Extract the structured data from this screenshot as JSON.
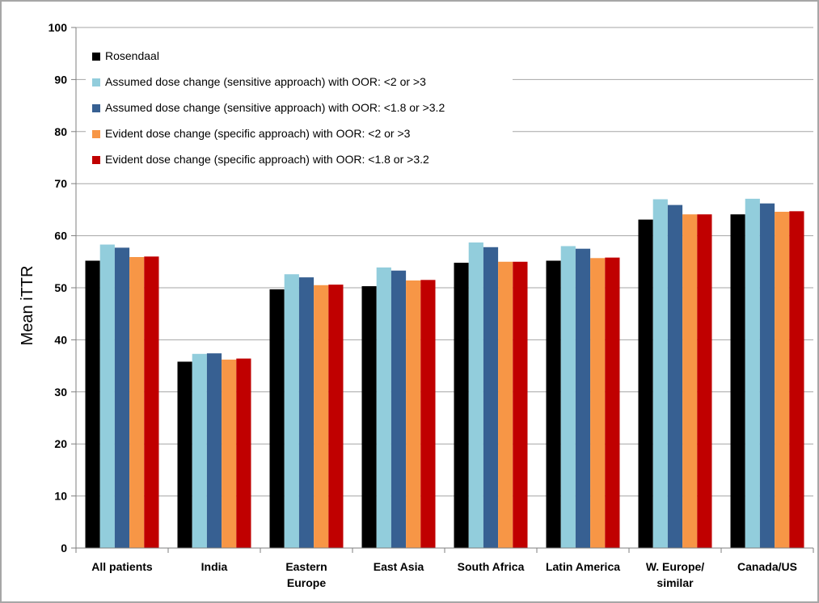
{
  "chart_data": {
    "type": "bar",
    "title": "",
    "xlabel": "",
    "ylabel": "Mean iTTR",
    "ylim": [
      0,
      100
    ],
    "yticks": [
      0,
      10,
      20,
      30,
      40,
      50,
      60,
      70,
      80,
      90,
      100
    ],
    "grid": true,
    "legend_position": "top-left",
    "categories": [
      [
        "All patients"
      ],
      [
        "India"
      ],
      [
        "Eastern",
        "Europe"
      ],
      [
        "East Asia"
      ],
      [
        "South Africa"
      ],
      [
        "Latin America"
      ],
      [
        "W. Europe/",
        "similar"
      ],
      [
        "Canada/US"
      ]
    ],
    "series": [
      {
        "name": "Rosendaal",
        "color": "#000000",
        "values": [
          55.2,
          35.8,
          49.7,
          50.3,
          54.8,
          55.2,
          63.1,
          64.1
        ]
      },
      {
        "name": "Assumed dose change (sensitive approach) with OOR: <2 or >3",
        "color": "#92cddc",
        "values": [
          58.3,
          37.3,
          52.6,
          53.9,
          58.7,
          58.0,
          67.0,
          67.1
        ]
      },
      {
        "name": "Assumed dose change (sensitive approach) with OOR: <1.8 or >3.2",
        "color": "#376092",
        "values": [
          57.7,
          37.4,
          52.0,
          53.3,
          57.8,
          57.5,
          65.9,
          66.2
        ]
      },
      {
        "name": "Evident dose change (specific approach) with OOR: <2 or >3",
        "color": "#f79646",
        "values": [
          55.9,
          36.2,
          50.5,
          51.4,
          55.0,
          55.7,
          64.1,
          64.6
        ]
      },
      {
        "name": "Evident dose change (specific approach) with OOR: <1.8 or >3.2",
        "color": "#c00000",
        "values": [
          56.0,
          36.4,
          50.6,
          51.5,
          55.0,
          55.8,
          64.1,
          64.7
        ]
      }
    ]
  }
}
